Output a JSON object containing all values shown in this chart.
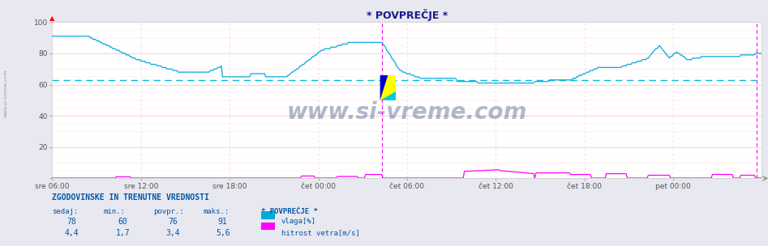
{
  "title": "* POVPREČJE *",
  "bg_color": "#e8e8f0",
  "plot_bg_color": "#ffffff",
  "grid_color_major": "#ffcccc",
  "grid_color_minor": "#ffeaea",
  "ylim": [
    0,
    100
  ],
  "yticks": [
    0,
    20,
    40,
    60,
    80,
    100
  ],
  "xlabel_times": [
    "sre 06:00",
    "sre 12:00",
    "sre 18:00",
    "čet 00:00",
    "čet 06:00",
    "čet 12:00",
    "čet 18:00",
    "pet 00:00"
  ],
  "avg_line_value": 63,
  "avg_line_color": "#00bbdd",
  "humidity_color": "#00aadd",
  "wind_color": "#ff00ff",
  "magenta_vline_x": 0.465,
  "magenta_right_vline_x": 0.993,
  "watermark": "www.si-vreme.com",
  "watermark_color": "#1a3a6e",
  "bottom_title": "ZGODOVINSKE IN TRENUTNE VREDNOSTI",
  "col_headers": [
    "sedaj:",
    "min.:",
    "povpr.:",
    "maks.:"
  ],
  "humidity_row": [
    "78",
    "60",
    "76",
    "91"
  ],
  "wind_row": [
    "4,4",
    "1,7",
    "3,4",
    "5,6"
  ],
  "legend_humidity": "vlaga[%]",
  "legend_wind": "hitrost vetra[m/s]",
  "legend_title": "* POVPREČJE *",
  "text_color": "#0055aa",
  "title_color": "#1a1a8c",
  "left_watermark": "www.si-vreme.com"
}
